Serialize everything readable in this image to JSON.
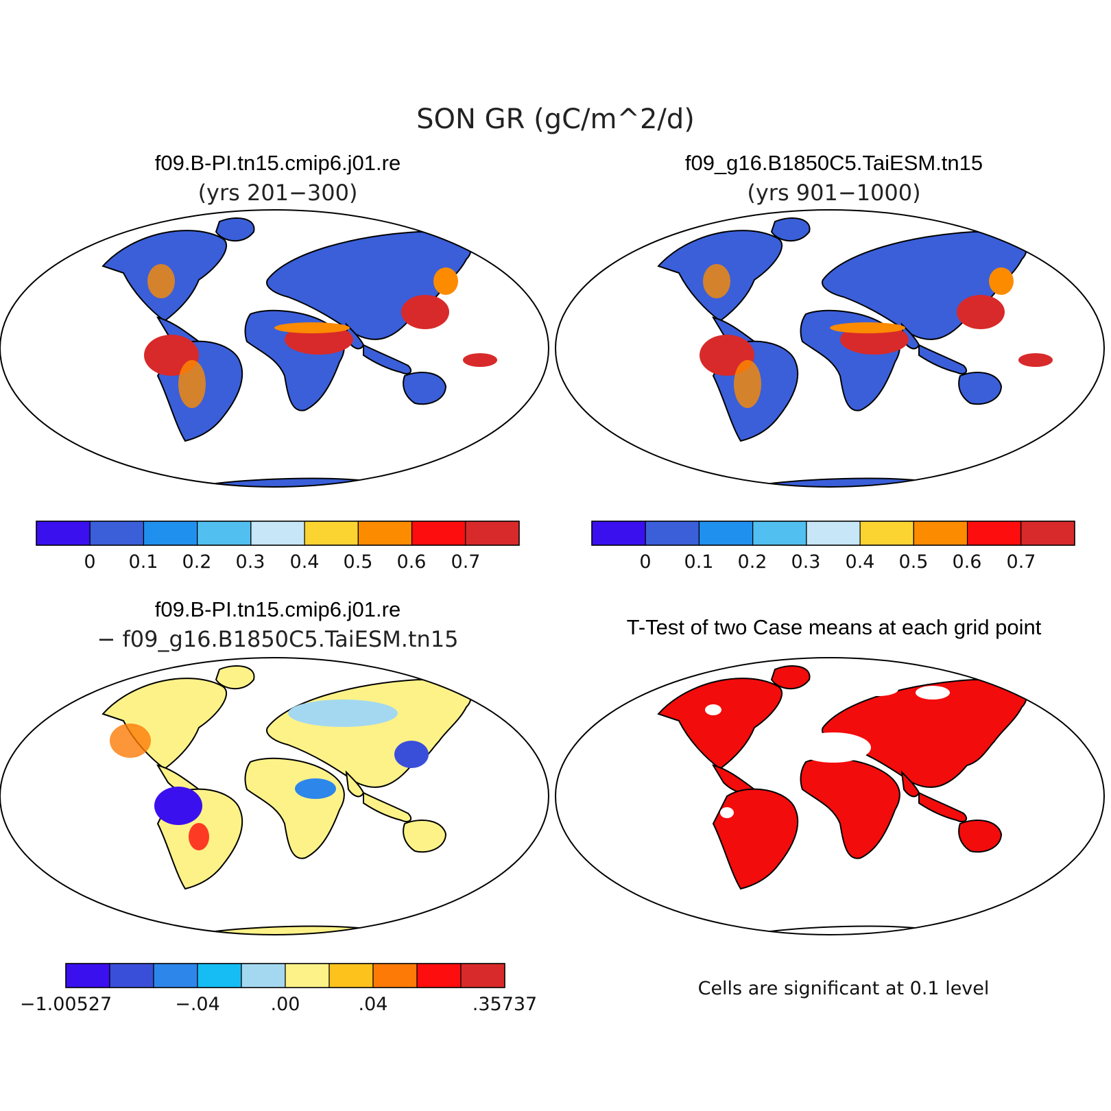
{
  "main_title": "SON GR (gC/m^2/d)",
  "panels": [
    {
      "title": "f09.B-PI.tn15.cmip6.j01.re",
      "subtitle": "(yrs 201−300)",
      "fill": "mean"
    },
    {
      "title": "f09_g16.B1850C5.TaiESM.tn15",
      "subtitle": "(yrs 901−1000)",
      "fill": "mean"
    },
    {
      "title": "f09.B-PI.tn15.cmip6.j01.re",
      "subtitle": "− f09_g16.B1850C5.TaiESM.tn15",
      "fill": "difference"
    },
    {
      "title": "T-Test of two Case means at each grid point",
      "subtitle": "",
      "fill": "significance",
      "note": "Cells are significant at 0.1 level"
    }
  ],
  "colorbars": {
    "mean": {
      "colors": [
        "#3a10ef",
        "#3a5fd9",
        "#2090ee",
        "#52bff1",
        "#c7e6f7",
        "#fcd431",
        "#fd8b00",
        "#fd0d0d",
        "#d82a2a"
      ],
      "labels": [
        "0",
        "0.1",
        "0.2",
        "0.3",
        "0.4",
        "0.5",
        "0.6",
        "0.7"
      ]
    },
    "difference": {
      "colors": [
        "#3a10ef",
        "#3a4fd9",
        "#2d86ea",
        "#16bcf4",
        "#a4d8f0",
        "#fdf288",
        "#fdc21c",
        "#fd7a07",
        "#fd0d0d",
        "#d82a2a"
      ],
      "labels": [
        "−1.00527",
        "−.04",
        ".00",
        ".04",
        ".35737"
      ]
    }
  },
  "significance_color": "#f20c0c"
}
